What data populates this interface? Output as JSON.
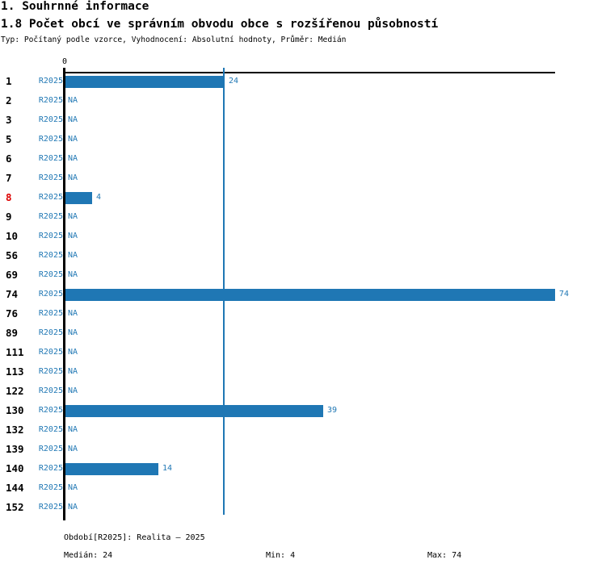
{
  "header": {
    "title_line1": "1. Souhrnné informace",
    "title_line2": "1.8 Počet obcí ve správním obvodu obce s rozšířenou působností",
    "meta_line": "Typ: Počítaný podle vzorce, Vyhodnocení: Absolutní hodnoty, Průměr: Medián"
  },
  "chart_data": {
    "type": "bar",
    "orientation": "horizontal",
    "series_name": "R2025",
    "na_text": "NA",
    "x_axis": {
      "zero_label": "0",
      "min": 0,
      "max": 74,
      "grid": false
    },
    "categories": [
      "1",
      "2",
      "3",
      "5",
      "6",
      "7",
      "8",
      "9",
      "10",
      "56",
      "69",
      "74",
      "76",
      "89",
      "111",
      "113",
      "122",
      "130",
      "132",
      "139",
      "140",
      "144",
      "152"
    ],
    "values": [
      24,
      null,
      null,
      null,
      null,
      null,
      4,
      null,
      null,
      null,
      null,
      74,
      null,
      null,
      null,
      null,
      null,
      39,
      null,
      null,
      14,
      null,
      null
    ],
    "highlighted_category": "8",
    "median": 24,
    "min": 4,
    "max": 74,
    "colors": {
      "bar": "#1f77b4",
      "text_blue": "#1f77b4",
      "highlight_red": "#dd0000",
      "axis_black": "#000000"
    }
  },
  "footer": {
    "period_label": "Období[R2025]: Realita – 2025",
    "median_label": "Medián: 24",
    "min_label": "Min: 4",
    "max_label": "Max: 74"
  }
}
